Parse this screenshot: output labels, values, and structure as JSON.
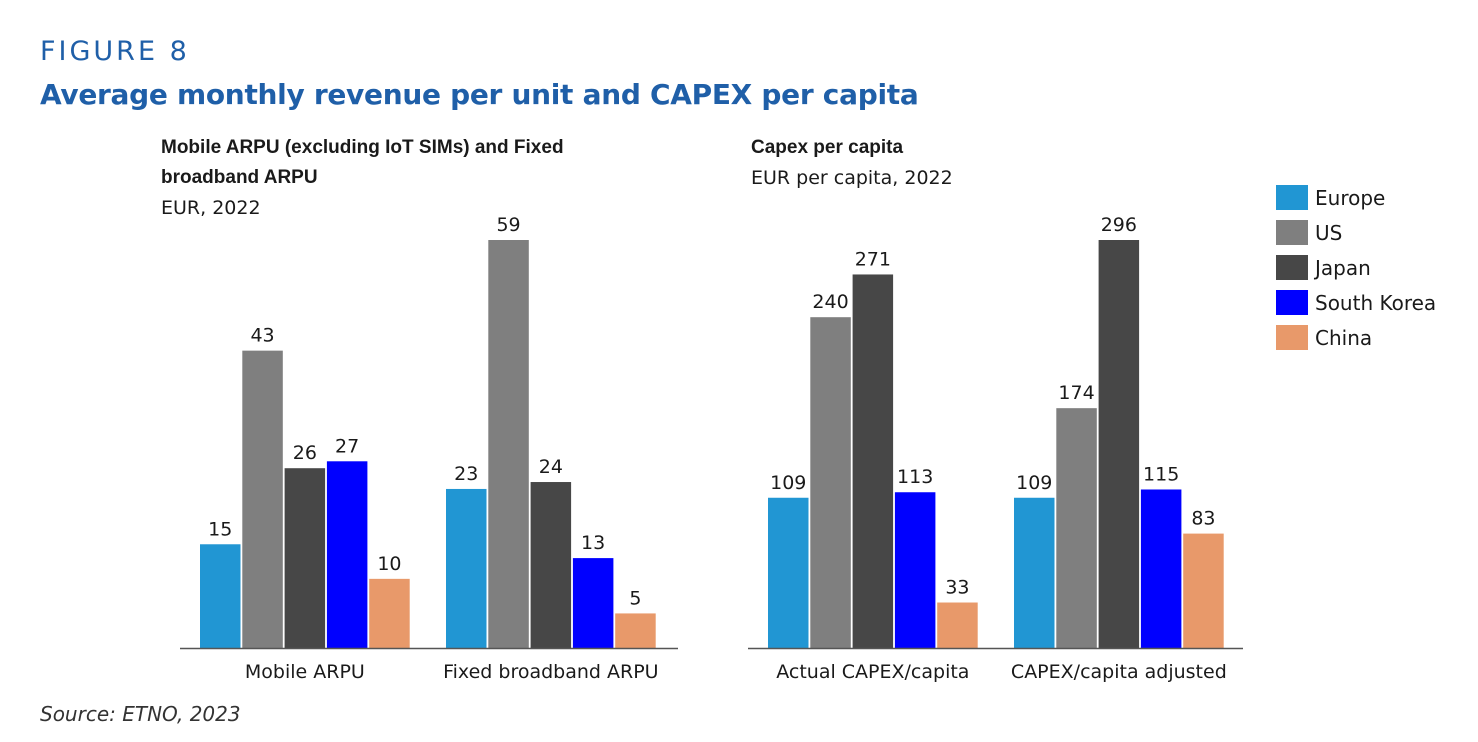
{
  "header": {
    "figure_label": "FIGURE 8",
    "title": "Average monthly revenue per unit and CAPEX per capita"
  },
  "panels": {
    "left": {
      "title_line1": "Mobile ARPU (excluding IoT SIMs) and Fixed",
      "title_line2": "broadband ARPU",
      "subtitle": "EUR, 2022"
    },
    "right": {
      "title_line1": "Capex per capita",
      "subtitle": "EUR per capita, 2022"
    }
  },
  "source": "Source: ETNO, 2023",
  "colors": {
    "Europe": "#2196d3",
    "US": "#7f7f7f",
    "Japan": "#474747",
    "South Korea": "#0000ff",
    "China": "#e8996a"
  },
  "legend": {
    "items": [
      "Europe",
      "US",
      "Japan",
      "South Korea",
      "China"
    ]
  },
  "chart_data": [
    {
      "type": "bar",
      "title": "Mobile ARPU (excluding IoT SIMs) and Fixed broadband ARPU",
      "subtitle": "EUR, 2022",
      "categories": [
        "Mobile ARPU",
        "Fixed broadband ARPU"
      ],
      "series": [
        {
          "name": "Europe",
          "values": [
            15,
            23
          ]
        },
        {
          "name": "US",
          "values": [
            43,
            59
          ]
        },
        {
          "name": "Japan",
          "values": [
            26,
            24
          ]
        },
        {
          "name": "South Korea",
          "values": [
            27,
            13
          ]
        },
        {
          "name": "China",
          "values": [
            10,
            5
          ]
        }
      ],
      "ylim": [
        0,
        59
      ],
      "grid": false,
      "legend": "right"
    },
    {
      "type": "bar",
      "title": "Capex per capita",
      "subtitle": "EUR per capita, 2022",
      "categories": [
        "Actual CAPEX/capita",
        "CAPEX/capita adjusted"
      ],
      "series": [
        {
          "name": "Europe",
          "values": [
            109,
            109
          ]
        },
        {
          "name": "US",
          "values": [
            240,
            174
          ]
        },
        {
          "name": "Japan",
          "values": [
            271,
            296
          ]
        },
        {
          "name": "South Korea",
          "values": [
            113,
            115
          ]
        },
        {
          "name": "China",
          "values": [
            33,
            83
          ]
        }
      ],
      "ylim": [
        0,
        296
      ],
      "grid": false,
      "legend": "right"
    }
  ]
}
